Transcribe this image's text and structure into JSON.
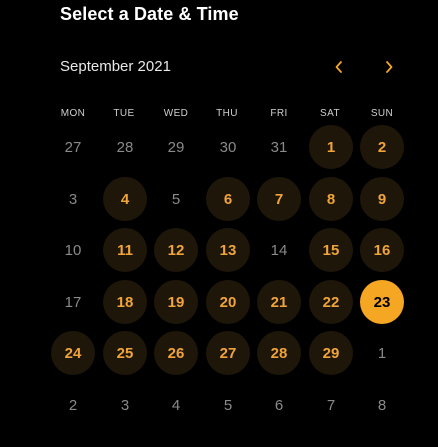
{
  "header": {
    "title": "Select a Date & Time"
  },
  "calendar": {
    "month_label": "September 2021",
    "prev_icon": "chevron-left-icon",
    "next_icon": "chevron-right-icon",
    "accent_color": "#f5a623",
    "weekdays": [
      "MON",
      "TUE",
      "WED",
      "THU",
      "FRI",
      "SAT",
      "SUN"
    ],
    "weeks": [
      [
        {
          "label": "27",
          "state": "muted"
        },
        {
          "label": "28",
          "state": "muted"
        },
        {
          "label": "29",
          "state": "muted"
        },
        {
          "label": "30",
          "state": "muted"
        },
        {
          "label": "31",
          "state": "muted"
        },
        {
          "label": "1",
          "state": "available"
        },
        {
          "label": "2",
          "state": "available"
        }
      ],
      [
        {
          "label": "3",
          "state": "muted"
        },
        {
          "label": "4",
          "state": "available"
        },
        {
          "label": "5",
          "state": "muted"
        },
        {
          "label": "6",
          "state": "available"
        },
        {
          "label": "7",
          "state": "available"
        },
        {
          "label": "8",
          "state": "available"
        },
        {
          "label": "9",
          "state": "available"
        }
      ],
      [
        {
          "label": "10",
          "state": "muted"
        },
        {
          "label": "11",
          "state": "available"
        },
        {
          "label": "12",
          "state": "available"
        },
        {
          "label": "13",
          "state": "available"
        },
        {
          "label": "14",
          "state": "muted"
        },
        {
          "label": "15",
          "state": "available"
        },
        {
          "label": "16",
          "state": "available"
        }
      ],
      [
        {
          "label": "17",
          "state": "muted"
        },
        {
          "label": "18",
          "state": "available"
        },
        {
          "label": "19",
          "state": "available"
        },
        {
          "label": "20",
          "state": "available"
        },
        {
          "label": "21",
          "state": "available"
        },
        {
          "label": "22",
          "state": "available"
        },
        {
          "label": "23",
          "state": "selected"
        }
      ],
      [
        {
          "label": "24",
          "state": "available"
        },
        {
          "label": "25",
          "state": "available"
        },
        {
          "label": "26",
          "state": "available"
        },
        {
          "label": "27",
          "state": "available"
        },
        {
          "label": "28",
          "state": "available"
        },
        {
          "label": "29",
          "state": "available"
        },
        {
          "label": "1",
          "state": "muted"
        }
      ],
      [
        {
          "label": "2",
          "state": "muted"
        },
        {
          "label": "3",
          "state": "muted"
        },
        {
          "label": "4",
          "state": "muted"
        },
        {
          "label": "5",
          "state": "muted"
        },
        {
          "label": "6",
          "state": "muted"
        },
        {
          "label": "7",
          "state": "muted"
        },
        {
          "label": "8",
          "state": "muted"
        }
      ]
    ]
  }
}
